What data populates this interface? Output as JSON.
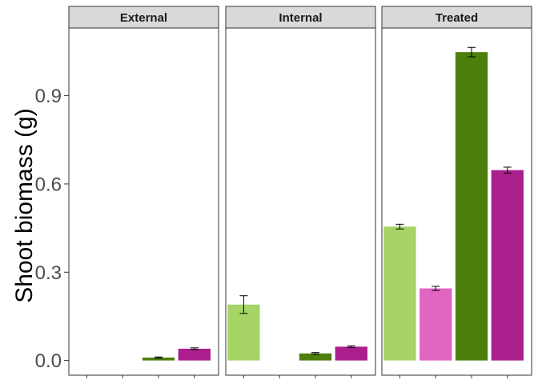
{
  "chart_data": {
    "type": "bar",
    "ylabel": "Shoot biomass (g)",
    "xlabel": "",
    "ylim": [
      -0.05,
      1.13
    ],
    "yticks": [
      0.0,
      0.3,
      0.6,
      0.9
    ],
    "ytick_labels": [
      "0.0",
      "0.3",
      "0.6",
      "0.9"
    ],
    "grid": false,
    "legend": "none",
    "facets": [
      {
        "name": "External",
        "bars": [
          {
            "value": null,
            "err": null,
            "color": "#a6d466"
          },
          {
            "value": null,
            "err": null,
            "color": "#e066c2"
          },
          {
            "value": 0.01,
            "err": 0.002,
            "color": "#4d7f0d"
          },
          {
            "value": 0.04,
            "err": 0.003,
            "color": "#ab1f8c"
          }
        ]
      },
      {
        "name": "Internal",
        "bars": [
          {
            "value": 0.19,
            "err": 0.03,
            "color": "#a6d466"
          },
          {
            "value": null,
            "err": null,
            "color": "#e066c2"
          },
          {
            "value": 0.024,
            "err": 0.003,
            "color": "#4d7f0d"
          },
          {
            "value": 0.047,
            "err": 0.003,
            "color": "#ab1f8c"
          }
        ]
      },
      {
        "name": "Treated",
        "bars": [
          {
            "value": 0.455,
            "err": 0.008,
            "color": "#a6d466"
          },
          {
            "value": 0.245,
            "err": 0.007,
            "color": "#e066c2"
          },
          {
            "value": 1.048,
            "err": 0.016,
            "color": "#4d7f0d"
          },
          {
            "value": 0.647,
            "err": 0.01,
            "color": "#ab1f8c"
          }
        ]
      }
    ]
  }
}
